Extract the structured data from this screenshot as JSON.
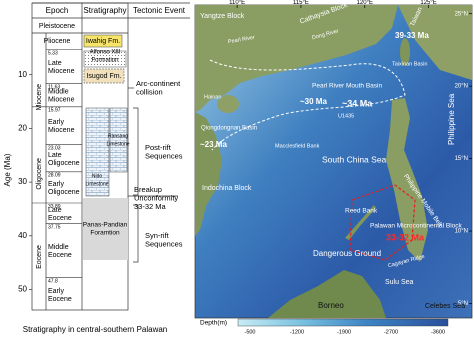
{
  "strat": {
    "headers": [
      "Epoch",
      "Stratigraphy",
      "Tectonic Event"
    ],
    "top_epochs": [
      "Pleistocene",
      "Pliocene"
    ],
    "epochs": [
      "Late Miocene",
      "Middle Miocene",
      "Early Miocene",
      "Late Oligocene",
      "Early Oligocene",
      "Late Eocene",
      "Middle Eocene",
      "Early Eocene"
    ],
    "groups": [
      "Miocene",
      "Oligocene",
      "Eocene"
    ],
    "boundaries": [
      5.33,
      11.63,
      15.97,
      23.03,
      28.09,
      33.89,
      37.75,
      47.8
    ],
    "ylabel": "Age (Ma)",
    "ylim": [
      0,
      54
    ],
    "yticks": [
      10,
      20,
      30,
      40,
      50
    ],
    "formations": [
      "Iwahig Fm.",
      "Alfonso XIII Formation",
      "Isugod Fm.",
      "Nido Limestone",
      "Ransang Limestone",
      "Panas-Pandian Foramtion"
    ],
    "events": [
      "Arc-continent collision",
      "Post-rift Sequences",
      "Breakup Unconformity 33-32 Ma",
      "Syn-rift Sequences"
    ],
    "caption": "Stratigraphy in central-southern Palawan"
  },
  "map": {
    "xticks": [
      {
        "value": 110,
        "label": "110°E"
      },
      {
        "value": 115,
        "label": "115°E"
      },
      {
        "value": 120,
        "label": "120°E"
      },
      {
        "value": 125,
        "label": "125°E"
      }
    ],
    "yticks": [
      {
        "value": 25,
        "label": "25°N"
      },
      {
        "value": 20,
        "label": "20°N"
      },
      {
        "value": 15,
        "label": "15°N"
      },
      {
        "value": 10,
        "label": "10°N"
      },
      {
        "value": 5,
        "label": "5°N"
      }
    ],
    "xlim": [
      106.7,
      128.4
    ],
    "ylim": [
      4,
      25.6
    ],
    "labels": [
      "Yangtze Block",
      "Cathaysia Block",
      "Pearl River",
      "Dong River",
      "Taiwan",
      "39-33 Ma",
      "Taixinan Basin",
      "Pearl River Mouth Basin",
      "~30 Ma",
      "Hainan",
      "~34 Ma",
      "U1435",
      "Qiongdongnan Basin",
      "~23 Ma",
      "Macclesfield Bank",
      "South China Sea",
      "Indochina Block",
      "Philippine Sea",
      "Philippine Mobile Belt",
      "Reed Bank",
      "Palawan Microcontinental Block",
      "33-32 Ma",
      "Dangerous Ground",
      "Cagayan Ridge",
      "Sulu Sea",
      "Borneo",
      "Celebes Sea"
    ],
    "depth_title": "Depth(m)",
    "depth_ticks": [
      "-500",
      "-1200",
      "-1900",
      "-2700",
      "-3600"
    ]
  }
}
